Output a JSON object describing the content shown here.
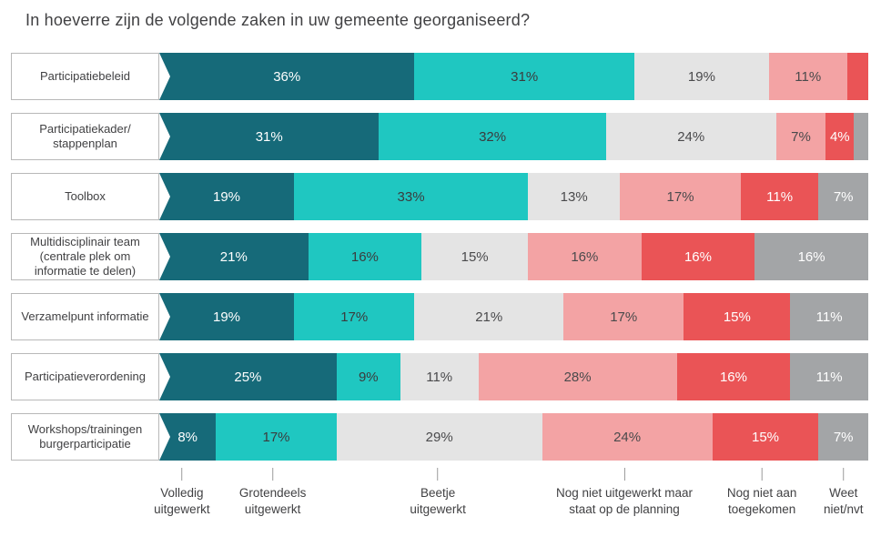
{
  "title": "In hoeverre zijn de volgende zaken in uw gemeente georganiseerd?",
  "chart_data": {
    "type": "bar",
    "variant": "horizontal-stacked",
    "unit": "%",
    "label_threshold": 4,
    "xlim": [
      0,
      100
    ],
    "categories": [
      "Participatiebeleid",
      "Participatiekader/\nstappenplan",
      "Toolbox",
      "Multidisciplinair team\n(centrale plek om\ninformatie te delen)",
      "Verzamelpunt informatie",
      "Participatieverordening",
      "Workshops/trainingen\nburgerparticipatie"
    ],
    "series": [
      {
        "name": "Volledig uitgewerkt",
        "color": "#166a79",
        "text_color": "#ffffff",
        "values": [
          36,
          31,
          19,
          21,
          19,
          25,
          8
        ]
      },
      {
        "name": "Grotendeels uitgewerkt",
        "color": "#1fc7c1",
        "text_color": "#3b3b3d",
        "values": [
          31,
          32,
          33,
          16,
          17,
          9,
          17
        ]
      },
      {
        "name": "Beetje uitgewerkt",
        "color": "#e4e4e4",
        "text_color": "#4a4a4c",
        "values": [
          19,
          24,
          13,
          15,
          21,
          11,
          29
        ]
      },
      {
        "name": "Nog niet uitgewerkt maar staat op de planning",
        "color": "#f3a3a4",
        "text_color": "#4a4a4c",
        "values": [
          11,
          7,
          17,
          16,
          17,
          28,
          24
        ]
      },
      {
        "name": "Nog niet aan toegekomen",
        "color": "#ea5456",
        "text_color": "#ffffff",
        "values": [
          3,
          4,
          11,
          16,
          15,
          16,
          15
        ]
      },
      {
        "name": "Weet niet/nvt",
        "color": "#a3a5a7",
        "text_color": "#ffffff",
        "values": [
          0,
          2,
          7,
          16,
          11,
          11,
          7
        ]
      }
    ]
  },
  "axis_legend": [
    {
      "label": "Volledig\nuitgewerkt",
      "position_pct": 3.2
    },
    {
      "label": "Grotendeels\nuitgewerkt",
      "position_pct": 16
    },
    {
      "label": "Beetje\nuitgewerkt",
      "position_pct": 39.3
    },
    {
      "label": "Nog niet uitgewerkt maar\nstaat op de planning",
      "position_pct": 65.6
    },
    {
      "label": "Nog niet aan\ntoegekomen",
      "position_pct": 85
    },
    {
      "label": "Weet\nniet/nvt",
      "position_pct": 96.5
    }
  ]
}
